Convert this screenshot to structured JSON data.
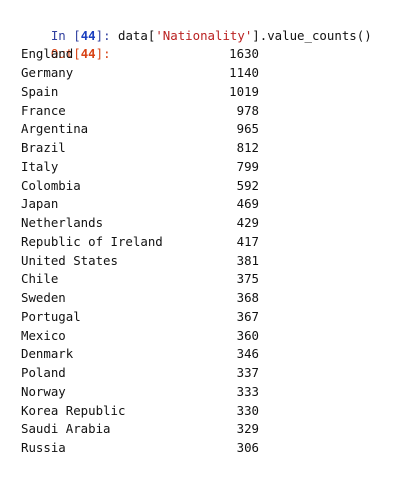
{
  "input_cell": {
    "prompt_label": "In",
    "execution_count": "44",
    "code_prefix": "data[",
    "code_string": "'Nationality'",
    "code_suffix": "].value_counts()"
  },
  "output_cell": {
    "prompt_label": "Out",
    "execution_count": "44"
  },
  "rows": [
    {
      "name": "England",
      "count": "1630"
    },
    {
      "name": "Germany",
      "count": "1140"
    },
    {
      "name": "Spain",
      "count": "1019"
    },
    {
      "name": "France",
      "count": "978"
    },
    {
      "name": "Argentina",
      "count": "965"
    },
    {
      "name": "Brazil",
      "count": "812"
    },
    {
      "name": "Italy",
      "count": "799"
    },
    {
      "name": "Colombia",
      "count": "592"
    },
    {
      "name": "Japan",
      "count": "469"
    },
    {
      "name": "Netherlands",
      "count": "429"
    },
    {
      "name": "Republic of Ireland",
      "count": "417"
    },
    {
      "name": "United States",
      "count": "381"
    },
    {
      "name": "Chile",
      "count": "375"
    },
    {
      "name": "Sweden",
      "count": "368"
    },
    {
      "name": "Portugal",
      "count": "367"
    },
    {
      "name": "Mexico",
      "count": "360"
    },
    {
      "name": "Denmark",
      "count": "346"
    },
    {
      "name": "Poland",
      "count": "337"
    },
    {
      "name": "Norway",
      "count": "333"
    },
    {
      "name": "Korea Republic",
      "count": "330"
    },
    {
      "name": "Saudi Arabia",
      "count": "329"
    },
    {
      "name": "Russia",
      "count": "306"
    }
  ]
}
